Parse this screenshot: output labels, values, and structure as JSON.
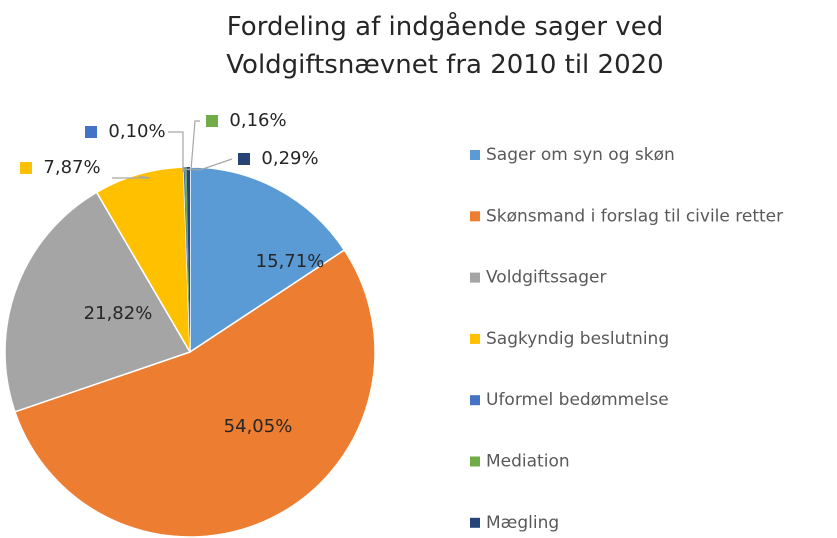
{
  "chart_data": {
    "type": "pie",
    "title": "Fordeling af indgående sager ved Voldgiftsnævnet fra 2010 til 2020",
    "categories": [
      "Sager om syn og skøn",
      "Skønsmand i forslag til civile retter",
      "Voldgiftssager",
      "Sagkyndig beslutning",
      "Uformel bedømmelse",
      "Mediation",
      "Mægling"
    ],
    "values": [
      15.71,
      54.05,
      21.82,
      7.87,
      0.1,
      0.16,
      0.29
    ],
    "value_labels": [
      "15,71%",
      "54,05%",
      "21,82%",
      "7,87%",
      "0,10%",
      "0,16%",
      "0,29%"
    ],
    "colors": [
      "#5b9bd5",
      "#ed7d31",
      "#a5a5a5",
      "#ffc000",
      "#4472c4",
      "#70ad47",
      "#264478"
    ],
    "legend": "right"
  }
}
